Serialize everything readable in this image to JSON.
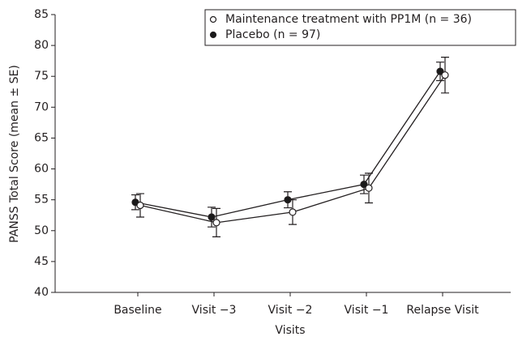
{
  "chart_data": {
    "type": "line",
    "y_label": "PANSS Total Score (mean ± SE)",
    "x_label": "Visits",
    "categories": [
      "Baseline",
      "Visit −3",
      "Visit −2",
      "Visit −1",
      "Relapse Visit"
    ],
    "series": [
      {
        "name": "Maintenance treatment with PP1M (n = 36)",
        "color": "#ffffff",
        "values": [
          54.1,
          51.3,
          53.0,
          56.9,
          75.2
        ],
        "errors": [
          1.9,
          2.3,
          2.0,
          2.4,
          2.9
        ]
      },
      {
        "name": "Placebo (n = 97)",
        "color": "#1a1a1a",
        "values": [
          54.6,
          52.2,
          55.0,
          57.5,
          75.8
        ],
        "errors": [
          1.2,
          1.6,
          1.3,
          1.5,
          1.5
        ]
      }
    ],
    "ylim": [
      40,
      85
    ],
    "yticks": [
      40,
      45,
      50,
      55,
      60,
      65,
      70,
      75,
      80,
      85
    ],
    "legend": "top-right"
  }
}
